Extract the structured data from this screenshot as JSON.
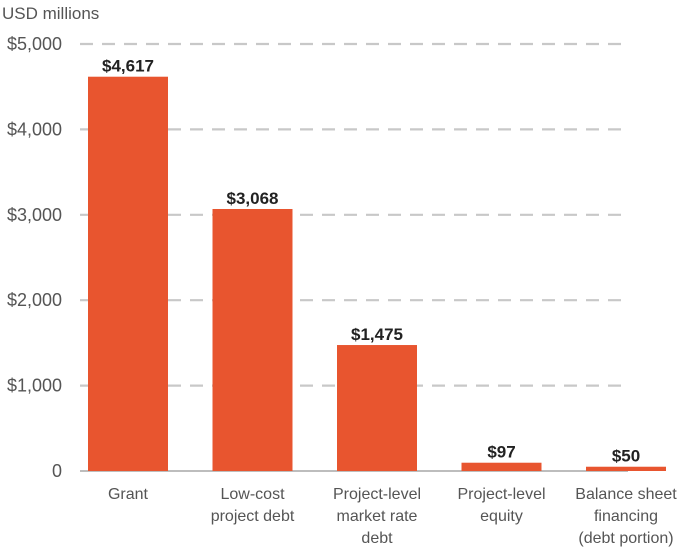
{
  "chart_data": {
    "type": "bar",
    "title": "",
    "ylabel": "USD millions",
    "xlabel": "",
    "ylim": [
      0,
      5000
    ],
    "yticks": [
      0,
      1000,
      2000,
      3000,
      4000,
      5000
    ],
    "ytick_labels": [
      "0",
      "$1,000",
      "$2,000",
      "$3,000",
      "$4,000",
      "$5,000"
    ],
    "grid": true,
    "bar_color": "#e8552f",
    "categories": [
      [
        "Grant"
      ],
      [
        "Low-cost",
        "project debt"
      ],
      [
        "Project-level",
        "market rate",
        "debt"
      ],
      [
        "Project-level",
        "equity"
      ],
      [
        "Balance sheet",
        "financing",
        "(debt portion)"
      ]
    ],
    "values": [
      4617,
      3068,
      1475,
      97,
      50
    ],
    "value_labels": [
      "$4,617",
      "$3,068",
      "$1,475",
      "$97",
      "$50"
    ]
  }
}
